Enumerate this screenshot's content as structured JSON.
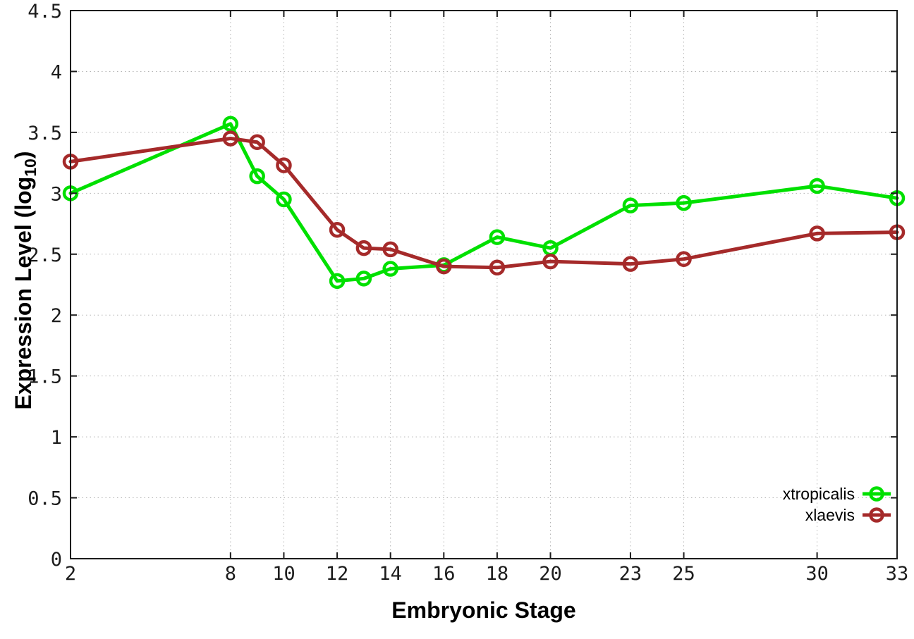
{
  "chart_data": {
    "type": "line",
    "title": "",
    "xlabel": "Embryonic Stage",
    "ylabel": {
      "text": "Expression Level (log",
      "sub": "10",
      "suffix": ")"
    },
    "x": [
      2,
      8,
      9,
      10,
      12,
      13,
      14,
      16,
      18,
      20,
      23,
      25,
      30,
      33
    ],
    "xticks": [
      2,
      8,
      10,
      12,
      14,
      16,
      18,
      20,
      23,
      25,
      30,
      33
    ],
    "yticks": [
      0,
      0.5,
      1,
      1.5,
      2,
      2.5,
      3,
      3.5,
      4,
      4.5
    ],
    "xlim": [
      2,
      33
    ],
    "ylim": [
      0,
      4.5
    ],
    "grid": true,
    "legend_position": "inside-bottom-right",
    "series": [
      {
        "name": "xtropicalis",
        "color": "#00e000",
        "marker": "open-circle",
        "values": [
          3.0,
          3.57,
          3.14,
          2.95,
          2.28,
          2.3,
          2.38,
          2.41,
          2.64,
          2.55,
          2.9,
          2.92,
          3.06,
          2.96
        ]
      },
      {
        "name": "xlaevis",
        "color": "#a52a2a",
        "marker": "open-circle",
        "values": [
          3.26,
          3.45,
          3.42,
          3.23,
          2.7,
          2.55,
          2.54,
          2.4,
          2.39,
          2.44,
          2.42,
          2.46,
          2.67,
          2.68
        ]
      }
    ],
    "colors": {
      "background": "#ffffff",
      "border": "#1c1c1c",
      "grid": "#b4b4b4",
      "tick_text": "#1c1c1c"
    }
  }
}
